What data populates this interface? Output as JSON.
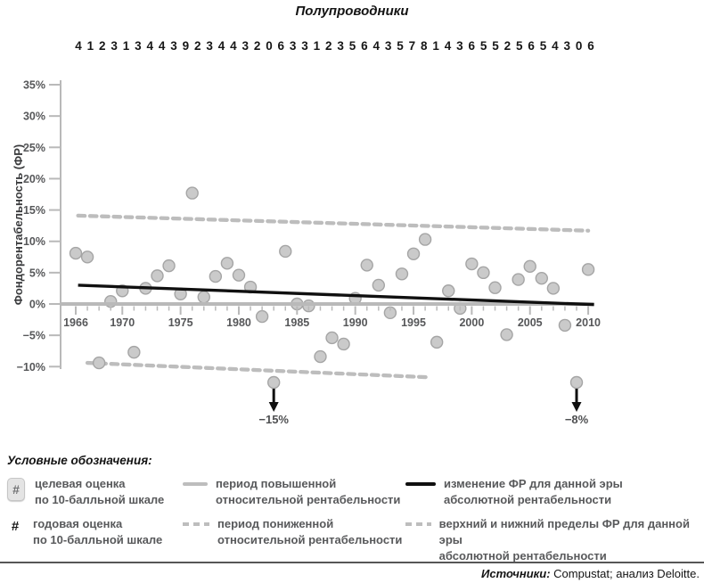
{
  "title": "Полупроводники",
  "annual_scores": [
    "4",
    "1",
    "2",
    "3",
    "1",
    "3",
    "4",
    "4",
    "3",
    "9",
    "2",
    "3",
    "4",
    "4",
    "3",
    "2",
    "0",
    "6",
    "3",
    "3",
    "1",
    "2",
    "3",
    "5",
    "6",
    "4",
    "3",
    "5",
    "7",
    "8",
    "1",
    "4",
    "3",
    "6",
    "5",
    "5",
    "2",
    "5",
    "6",
    "5",
    "4",
    "3",
    "0",
    "6"
  ],
  "chart_data": {
    "type": "scatter",
    "title": "Полупроводники",
    "ylabel": "Фондорентабельность (ФР)",
    "xlabel": "",
    "x_range": [
      1966,
      2010
    ],
    "y_range": [
      -10,
      35
    ],
    "grid": false,
    "y_ticks": [
      {
        "value": 35,
        "label": "35%"
      },
      {
        "value": 30,
        "label": "30%"
      },
      {
        "value": 25,
        "label": "25%"
      },
      {
        "value": 20,
        "label": "20%"
      },
      {
        "value": 15,
        "label": "15%"
      },
      {
        "value": 10,
        "label": "10%"
      },
      {
        "value": 5,
        "label": "5%"
      },
      {
        "value": 0,
        "label": "0%"
      },
      {
        "value": -5,
        "label": "−5%"
      },
      {
        "value": -10,
        "label": "−10%"
      }
    ],
    "x_major_ticks": [
      {
        "year": 1966,
        "label": "1966"
      },
      {
        "year": 1970,
        "label": "1970"
      },
      {
        "year": 1975,
        "label": "1975"
      },
      {
        "year": 1980,
        "label": "1980"
      },
      {
        "year": 1985,
        "label": "1985"
      },
      {
        "year": 1990,
        "label": "1990"
      },
      {
        "year": 1995,
        "label": "1995"
      },
      {
        "year": 2000,
        "label": "2000"
      },
      {
        "year": 2005,
        "label": "2005"
      },
      {
        "year": 2010,
        "label": "2010"
      }
    ],
    "points": [
      {
        "year": 1966,
        "value": 8.1
      },
      {
        "year": 1967,
        "value": 7.5
      },
      {
        "year": 1968,
        "value": -9.4
      },
      {
        "year": 1969,
        "value": 0.4
      },
      {
        "year": 1970,
        "value": 2.1
      },
      {
        "year": 1971,
        "value": -7.7
      },
      {
        "year": 1972,
        "value": 2.5
      },
      {
        "year": 1973,
        "value": 4.5
      },
      {
        "year": 1974,
        "value": 6.1
      },
      {
        "year": 1975,
        "value": 1.6
      },
      {
        "year": 1976,
        "value": 17.7
      },
      {
        "year": 1977,
        "value": 1.1
      },
      {
        "year": 1978,
        "value": 4.4
      },
      {
        "year": 1979,
        "value": 6.5
      },
      {
        "year": 1980,
        "value": 4.6
      },
      {
        "year": 1981,
        "value": 2.7
      },
      {
        "year": 1982,
        "value": -2.0
      },
      {
        "year": 1984,
        "value": 8.4
      },
      {
        "year": 1985,
        "value": 0.0
      },
      {
        "year": 1986,
        "value": -0.3
      },
      {
        "year": 1987,
        "value": -8.4
      },
      {
        "year": 1988,
        "value": -5.4
      },
      {
        "year": 1989,
        "value": -6.4
      },
      {
        "year": 1990,
        "value": 0.9
      },
      {
        "year": 1991,
        "value": 6.2
      },
      {
        "year": 1992,
        "value": 3.0
      },
      {
        "year": 1993,
        "value": -1.4
      },
      {
        "year": 1994,
        "value": 4.8
      },
      {
        "year": 1995,
        "value": 8.0
      },
      {
        "year": 1996,
        "value": 10.3
      },
      {
        "year": 1997,
        "value": -6.1
      },
      {
        "year": 1998,
        "value": 2.1
      },
      {
        "year": 1999,
        "value": -0.7
      },
      {
        "year": 2000,
        "value": 6.4
      },
      {
        "year": 2001,
        "value": 5.0
      },
      {
        "year": 2002,
        "value": 2.6
      },
      {
        "year": 2003,
        "value": -4.9
      },
      {
        "year": 2004,
        "value": 3.9
      },
      {
        "year": 2005,
        "value": 6.0
      },
      {
        "year": 2006,
        "value": 4.1
      },
      {
        "year": 2007,
        "value": 2.5
      },
      {
        "year": 2008,
        "value": -3.4
      },
      {
        "year": 2010,
        "value": 5.5
      }
    ],
    "offscale_points": [
      {
        "year": 1983,
        "value": -15,
        "label": "−15%"
      },
      {
        "year": 2009,
        "value": -8,
        "label": "−8%"
      }
    ],
    "trend_line": {
      "from": {
        "year": 1966.2,
        "value": 3.0
      },
      "to": {
        "year": 2010.5,
        "value": -0.1
      }
    },
    "upper_bound": {
      "from": {
        "year": 1966.2,
        "value": 14.1
      },
      "to": {
        "year": 2010.0,
        "value": 11.7
      }
    },
    "lower_bound": {
      "from": {
        "year": 1967.0,
        "value": -9.4
      },
      "to": {
        "year": 1996.3,
        "value": -11.7
      }
    },
    "zero_axis": {
      "value": 0,
      "to_year": 2010.5
    },
    "legend_position": "bottom"
  },
  "legend": {
    "title": "Условные обозначения:",
    "hash_symbol": "#",
    "items": [
      {
        "line1": "целевая оценка",
        "line2": "по 10-балльной шкале"
      },
      {
        "line1": "годовая оценка",
        "line2": "по 10-балльной шкале"
      },
      {
        "line1": "период повышенной",
        "line2": "относительной рентабельности"
      },
      {
        "line1": "период пониженной",
        "line2": "относительной рентабельности"
      },
      {
        "line1": "изменение ФР для данной эры",
        "line2": "абсолютной рентабельности"
      },
      {
        "line1": "верхний и нижний пределы ФР для данной эры",
        "line2": "абсолютной рентабельности"
      }
    ]
  },
  "source": {
    "prefix": "Источники:",
    "text": " Compustat; анализ Deloitte."
  },
  "colors": {
    "trend_black": "#101010",
    "axis_gray": "#b9b9b9",
    "band_gray": "#bdbdbd",
    "point_fill": "#cacaca",
    "point_stroke": "#a5a5a5",
    "label_gray": "#565759",
    "text_dark": "#141414"
  }
}
